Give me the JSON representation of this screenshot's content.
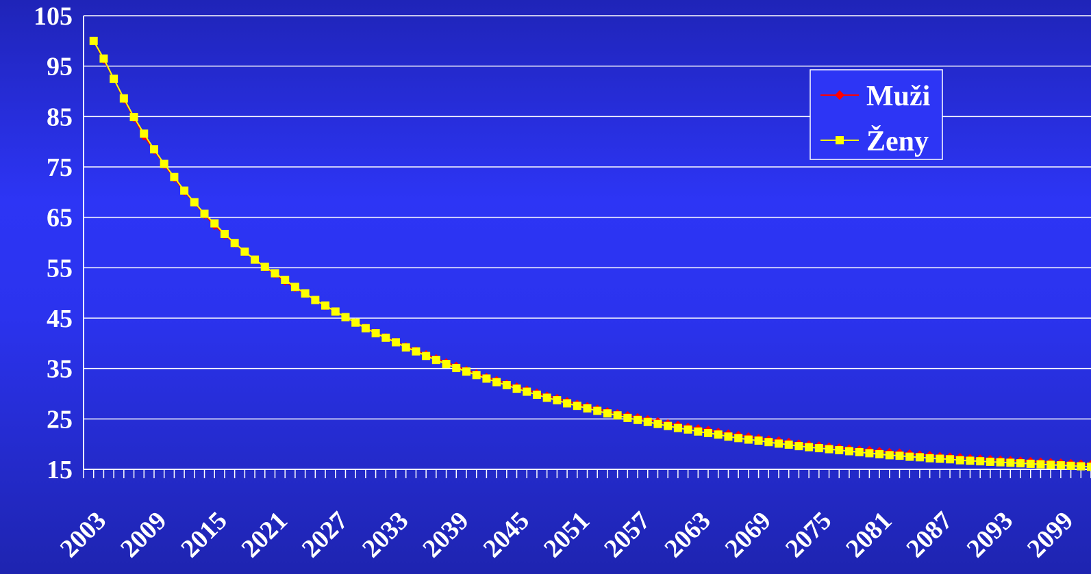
{
  "chart_data": {
    "type": "line",
    "title": "",
    "xlabel": "",
    "ylabel": "",
    "ylim": [
      15,
      105
    ],
    "yticks": [
      15,
      25,
      35,
      45,
      55,
      65,
      75,
      85,
      95,
      105
    ],
    "xlim": [
      2003,
      2103
    ],
    "xticklabels": [
      2003,
      2009,
      2015,
      2021,
      2027,
      2033,
      2039,
      2045,
      2051,
      2057,
      2063,
      2069,
      2075,
      2081,
      2087,
      2093,
      2099
    ],
    "grid": true,
    "legend_position": "top-right",
    "x": [
      2004,
      2005,
      2006,
      2007,
      2008,
      2009,
      2010,
      2011,
      2012,
      2013,
      2014,
      2015,
      2016,
      2017,
      2018,
      2019,
      2020,
      2021,
      2022,
      2023,
      2024,
      2025,
      2026,
      2027,
      2028,
      2029,
      2030,
      2031,
      2032,
      2033,
      2034,
      2035,
      2036,
      2037,
      2038,
      2039,
      2040,
      2041,
      2042,
      2043,
      2044,
      2045,
      2046,
      2047,
      2048,
      2049,
      2050,
      2051,
      2052,
      2053,
      2054,
      2055,
      2056,
      2057,
      2058,
      2059,
      2060,
      2061,
      2062,
      2063,
      2064,
      2065,
      2066,
      2067,
      2068,
      2069,
      2070,
      2071,
      2072,
      2073,
      2074,
      2075,
      2076,
      2077,
      2078,
      2079,
      2080,
      2081,
      2082,
      2083,
      2084,
      2085,
      2086,
      2087,
      2088,
      2089,
      2090,
      2091,
      2092,
      2093,
      2094,
      2095,
      2096,
      2097,
      2098,
      2099,
      2100,
      2101,
      2102,
      2103
    ],
    "series": [
      {
        "name": "Muži",
        "color": "#ff0000",
        "marker": "diamond",
        "values": [
          100,
          96.3,
          92.5,
          88.4,
          84.7,
          81.1,
          78.3,
          75.4,
          72.8,
          70.1,
          67.9,
          65.5,
          63.4,
          61.5,
          59.8,
          58.1,
          56.6,
          55.1,
          53.7,
          52.3,
          51.0,
          49.8,
          48.6,
          47.4,
          46.3,
          45.2,
          44.1,
          43.1,
          42.1,
          41.2,
          40.3,
          39.4,
          38.6,
          37.8,
          37.0,
          36.2,
          35.5,
          34.7,
          34.0,
          33.3,
          32.7,
          32.0,
          31.4,
          30.8,
          30.2,
          29.6,
          29.1,
          28.5,
          28.0,
          27.5,
          27.0,
          26.5,
          26.1,
          25.7,
          25.3,
          24.9,
          24.5,
          24.1,
          23.8,
          23.4,
          23.1,
          22.8,
          22.4,
          22.1,
          21.8,
          21.5,
          21.2,
          20.9,
          20.7,
          20.4,
          20.1,
          19.9,
          19.7,
          19.5,
          19.3,
          19.1,
          18.9,
          18.8,
          18.6,
          18.4,
          18.3,
          18.1,
          17.9,
          17.8,
          17.6,
          17.5,
          17.4,
          17.2,
          17.1,
          17.0,
          16.9,
          16.8,
          16.7,
          16.6,
          16.5,
          16.4,
          16.3,
          16.2,
          16.1,
          16.0
        ]
      },
      {
        "name": "Ženy",
        "color": "#ffff00",
        "marker": "square",
        "values": [
          100,
          96.5,
          92.5,
          88.6,
          84.9,
          81.6,
          78.5,
          75.6,
          73.0,
          70.3,
          68.0,
          65.7,
          63.8,
          61.7,
          59.9,
          58.2,
          56.6,
          55.2,
          53.9,
          52.6,
          51.2,
          49.9,
          48.6,
          47.5,
          46.3,
          45.2,
          44.1,
          43.0,
          42.0,
          41.1,
          40.2,
          39.2,
          38.4,
          37.5,
          36.7,
          35.9,
          35.1,
          34.4,
          33.7,
          33.0,
          32.3,
          31.7,
          31.0,
          30.4,
          29.8,
          29.2,
          28.7,
          28.1,
          27.6,
          27.1,
          26.6,
          26.1,
          25.7,
          25.2,
          24.8,
          24.4,
          24.0,
          23.6,
          23.2,
          22.9,
          22.5,
          22.2,
          21.9,
          21.5,
          21.2,
          20.9,
          20.7,
          20.4,
          20.1,
          19.9,
          19.6,
          19.4,
          19.2,
          19.0,
          18.8,
          18.6,
          18.4,
          18.2,
          18.0,
          17.8,
          17.7,
          17.5,
          17.4,
          17.2,
          17.1,
          17.0,
          16.8,
          16.7,
          16.6,
          16.5,
          16.4,
          16.3,
          16.2,
          16.1,
          16.0,
          15.9,
          15.8,
          15.7,
          15.6,
          15.5
        ]
      }
    ]
  }
}
